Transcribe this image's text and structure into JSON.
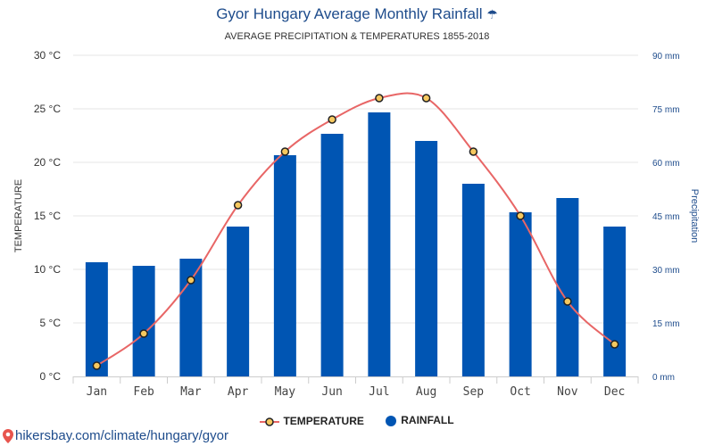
{
  "header": {
    "title": "Gyor Hungary Average Monthly Rainfall",
    "subtitle": "AVERAGE PRECIPITATION & TEMPERATURES 1855-2018"
  },
  "legend": {
    "temperature_label": "TEMPERATURE",
    "rainfall_label": "RAINFALL"
  },
  "footer": {
    "source": "hikersbay.com/climate/hungary/gyor"
  },
  "colors": {
    "bar": "#0055b3",
    "line": "#e86666",
    "marker_fill": "#f6c85f",
    "marker_stroke": "#222222",
    "title": "#1e4c8c",
    "grid": "#e6e6e6"
  },
  "chart_data": {
    "type": "bar",
    "categories": [
      "Jan",
      "Feb",
      "Mar",
      "Apr",
      "May",
      "Jun",
      "Jul",
      "Aug",
      "Sep",
      "Oct",
      "Nov",
      "Dec"
    ],
    "series": [
      {
        "name": "RAINFALL",
        "type": "bar",
        "axis": "right",
        "unit": "mm",
        "values": [
          32,
          31,
          33,
          42,
          62,
          68,
          74,
          66,
          54,
          46,
          50,
          42
        ]
      },
      {
        "name": "TEMPERATURE",
        "type": "line",
        "axis": "left",
        "unit": "°C",
        "values": [
          1,
          4,
          9,
          16,
          21,
          24,
          26,
          26,
          21,
          15,
          7,
          3
        ]
      }
    ],
    "ylabel_left": "TEMPERATURE",
    "ylabel_right": "Precipitation",
    "ylim_left": [
      0,
      30
    ],
    "ylim_right": [
      0,
      90
    ],
    "yticks_left": [
      "0 °C",
      "5 °C",
      "10 °C",
      "15 °C",
      "20 °C",
      "25 °C",
      "30 °C"
    ],
    "yticks_right": [
      "0 mm",
      "15 mm",
      "30 mm",
      "45 mm",
      "60 mm",
      "75 mm",
      "90 mm"
    ],
    "grid": true,
    "legend_position": "bottom"
  }
}
